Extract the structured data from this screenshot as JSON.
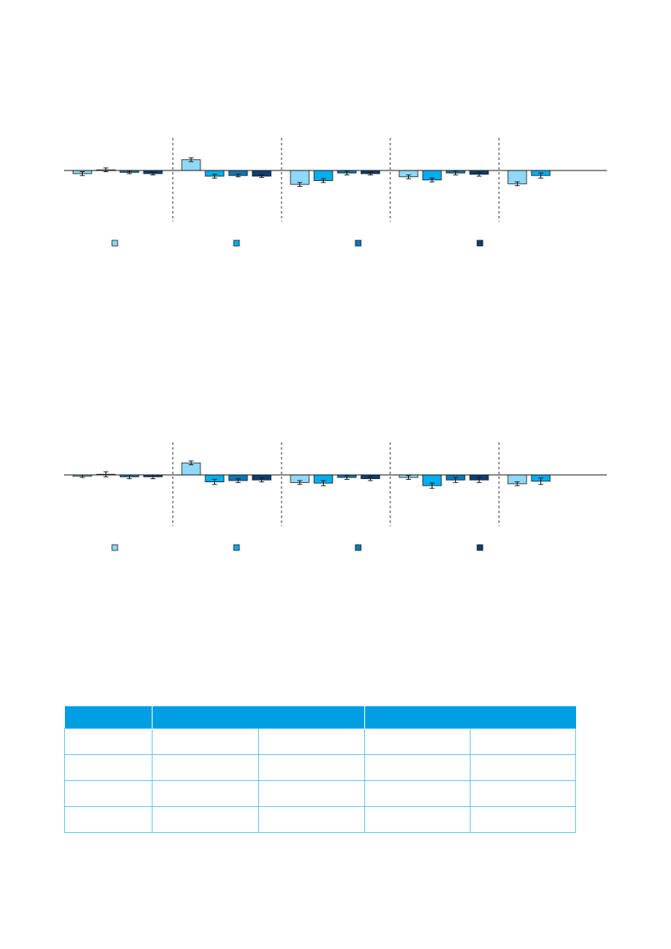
{
  "colors": [
    "#8fd8f7",
    "#00aeef",
    "#0b78b8",
    "#0c3f72"
  ],
  "chart_data": [
    {
      "type": "bar",
      "groups": 5,
      "series": [
        {
          "values": [
            -0.5,
            1.7,
            -2.2,
            -1.0,
            -2.1
          ],
          "err": [
            0.3,
            0.3,
            0.3,
            0.3,
            0.3
          ]
        },
        {
          "values": [
            0.1,
            -0.9,
            -1.6,
            -1.5,
            -0.8
          ],
          "err": [
            0.3,
            0.3,
            0.3,
            0.3,
            0.4
          ]
        },
        {
          "values": [
            -0.3,
            -0.8,
            -0.4,
            -0.4,
            null
          ],
          "err": [
            0.2,
            0.2,
            0.3,
            0.3,
            null
          ]
        },
        {
          "values": [
            -0.5,
            -0.9,
            -0.5,
            -0.6,
            null
          ],
          "err": [
            0.2,
            0.2,
            0.2,
            0.3,
            null
          ]
        }
      ],
      "ylim": [
        -4,
        3
      ],
      "legend": [
        "",
        "",
        "",
        ""
      ]
    },
    {
      "type": "bar",
      "groups": 5,
      "series": [
        {
          "values": [
            -0.2,
            1.9,
            -1.2,
            -0.4,
            -1.4
          ],
          "err": [
            0.2,
            0.3,
            0.3,
            0.3,
            0.3
          ]
        },
        {
          "values": [
            0.1,
            -1.1,
            -1.3,
            -1.7,
            -1.0
          ],
          "err": [
            0.4,
            0.4,
            0.4,
            0.4,
            0.5
          ]
        },
        {
          "values": [
            -0.3,
            -0.9,
            -0.4,
            -0.8,
            null
          ],
          "err": [
            0.3,
            0.3,
            0.3,
            0.4,
            null
          ]
        },
        {
          "values": [
            -0.3,
            -0.8,
            -0.6,
            -0.8,
            null
          ],
          "err": [
            0.3,
            0.3,
            0.3,
            0.4,
            null
          ]
        }
      ],
      "ylim": [
        -4,
        3
      ],
      "legend": [
        "",
        "",
        "",
        ""
      ]
    }
  ],
  "table": {
    "headers": [
      "",
      "",
      ""
    ],
    "rows": [
      [
        "",
        "",
        "",
        "",
        ""
      ],
      [
        "",
        "",
        "",
        "",
        ""
      ],
      [
        "",
        "",
        "",
        "",
        ""
      ],
      [
        "",
        "",
        "",
        "",
        ""
      ]
    ]
  }
}
